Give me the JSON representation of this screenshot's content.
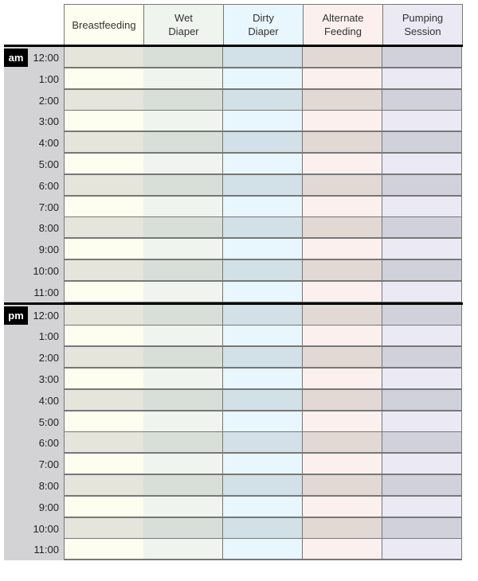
{
  "columns": [
    {
      "label": "Breastfeeding",
      "light": "#fefef0",
      "dark": "#e5e5dc"
    },
    {
      "label": "Wet\nDiaper",
      "light": "#eff4ee",
      "dark": "#d8dfd8"
    },
    {
      "label": "Dirty\nDiaper",
      "light": "#e8f6fd",
      "dark": "#d2e0e7"
    },
    {
      "label": "Alternate\nFeeding",
      "light": "#fcf0ee",
      "dark": "#e3d9d4"
    },
    {
      "label": "Pumping\nSession",
      "light": "#ebe9f4",
      "dark": "#d1d1db"
    }
  ],
  "blocks": [
    {
      "meridiem": "am",
      "times": [
        "12:00",
        "1:00",
        "2:00",
        "3:00",
        "4:00",
        "5:00",
        "6:00",
        "7:00",
        "8:00",
        "9:00",
        "10:00",
        "11:00"
      ]
    },
    {
      "meridiem": "pm",
      "times": [
        "12:00",
        "1:00",
        "2:00",
        "3:00",
        "4:00",
        "5:00",
        "6:00",
        "7:00",
        "8:00",
        "9:00",
        "10:00",
        "11:00"
      ]
    }
  ],
  "sidebar_color": "#d3d3d6"
}
